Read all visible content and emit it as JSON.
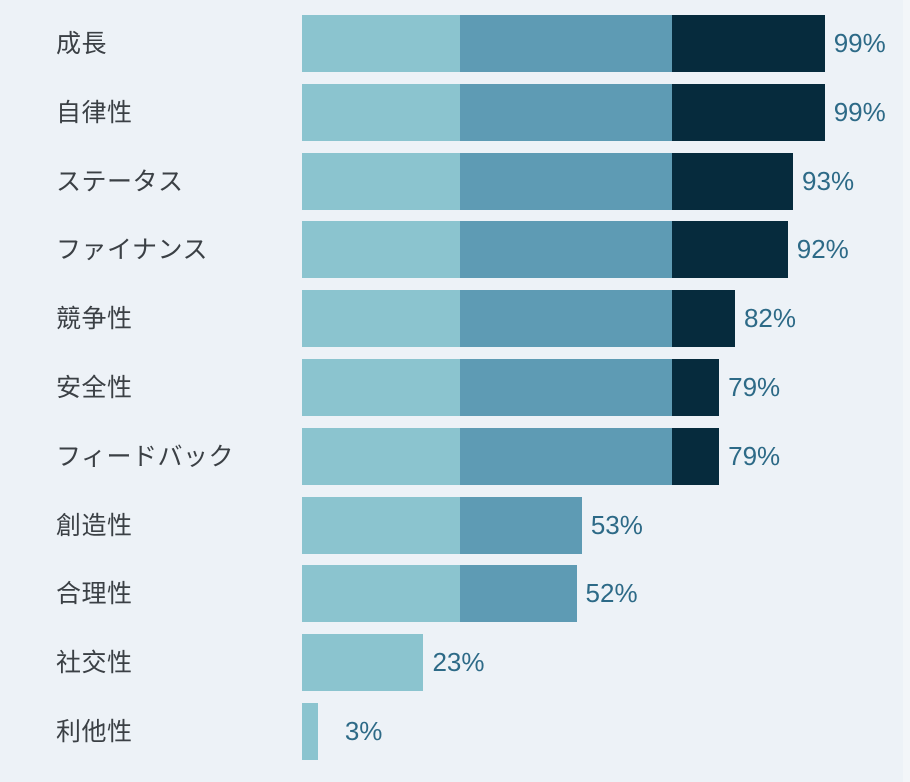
{
  "chart_data": {
    "type": "bar",
    "orientation": "horizontal",
    "stacked_visual": true,
    "title": "",
    "xlabel": "",
    "ylabel": "",
    "xlim": [
      0,
      100
    ],
    "grid": false,
    "legend": null,
    "categories": [
      "成長",
      "自律性",
      "ステータス",
      "ファイナンス",
      "競争性",
      "安全性",
      "フィードバック",
      "創造性",
      "合理性",
      "社交性",
      "利他性"
    ],
    "values": [
      99,
      99,
      93,
      92,
      82,
      79,
      79,
      53,
      52,
      23,
      3
    ],
    "value_labels": [
      "99%",
      "99%",
      "93%",
      "92%",
      "82%",
      "79%",
      "79%",
      "53%",
      "52%",
      "23%",
      "3%"
    ],
    "color_bands": [
      {
        "from": 0,
        "to": 30,
        "color": "#8bc4cf"
      },
      {
        "from": 30,
        "to": 70,
        "color": "#5e9bb4"
      },
      {
        "from": 70,
        "to": 100,
        "color": "#062b3d"
      }
    ],
    "value_label_color": "#2d6a87",
    "background": "#edf2f7"
  },
  "rows": [
    {
      "label": "成長",
      "value": 99,
      "text": "99%"
    },
    {
      "label": "自律性",
      "value": 99,
      "text": "99%"
    },
    {
      "label": "ステータス",
      "value": 93,
      "text": "93%"
    },
    {
      "label": "ファイナンス",
      "value": 92,
      "text": "92%"
    },
    {
      "label": "競争性",
      "value": 82,
      "text": "82%"
    },
    {
      "label": "安全性",
      "value": 79,
      "text": "79%"
    },
    {
      "label": "フィードバック",
      "value": 79,
      "text": "79%"
    },
    {
      "label": "創造性",
      "value": 53,
      "text": "53%"
    },
    {
      "label": "合理性",
      "value": 52,
      "text": "52%"
    },
    {
      "label": "社交性",
      "value": 23,
      "text": "23%"
    },
    {
      "label": "利他性",
      "value": 3,
      "text": "3%"
    }
  ]
}
